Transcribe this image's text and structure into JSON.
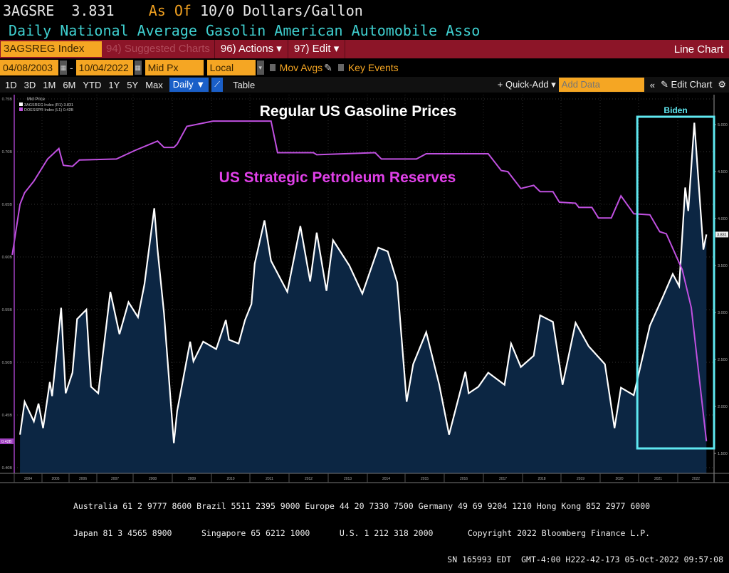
{
  "header": {
    "ticker": "3AGSRE",
    "price": "3.831",
    "as_of_label": "As Of",
    "as_of_value": "10/0",
    "units": "Dollars/Gallon",
    "description": "Daily National Average Gasolin American Automobile Asso"
  },
  "toolbar": {
    "security": "3AGSREG Index",
    "suggested": "94) Suggested Charts",
    "actions": "96) Actions ▾",
    "edit": "97) Edit ▾",
    "chart_type": "Line Chart"
  },
  "controls": {
    "start_date": "04/08/2003",
    "end_date": "10/04/2022",
    "separator": "-",
    "price_field": "Mid Px",
    "currency": "Local CCY",
    "mov_avgs": "Mov Avgs",
    "key_events": "Key Events"
  },
  "periods": [
    "1D",
    "3D",
    "1M",
    "6M",
    "YTD",
    "1Y",
    "5Y",
    "Max"
  ],
  "period_bar": {
    "frequency": "Daily ▼",
    "table": "Table",
    "quick_add": "+ Quick-Add ▾",
    "add_data_placeholder": "Add Data",
    "collapse": "«",
    "edit_chart": "✎ Edit Chart",
    "settings": "⚙"
  },
  "colors": {
    "gasoline": "#ffffff",
    "spr": "#c050e0",
    "fill": "#0c2643",
    "biden_box": "#5fe8f0",
    "toolbar": "#8c1528",
    "input": "#f5a623"
  },
  "chart_data": {
    "type": "line",
    "legend_header": "Mid Price",
    "legend_position": "top-left",
    "grid": true,
    "annotations": {
      "gas_title": "Regular US Gasoline Prices",
      "spr_title": "US Strategic Petroleum Reserves",
      "box_label": "Biden",
      "box_range": [
        "2021-01",
        "2022-10"
      ]
    },
    "x_ticks": [
      "2004",
      "2005",
      "2006",
      "2007",
      "2008",
      "2009",
      "2010",
      "2011",
      "2012",
      "2013",
      "2014",
      "2015",
      "2016",
      "2017",
      "2018",
      "2019",
      "2020",
      "2021",
      "2022"
    ],
    "left_axis": {
      "ticks": [
        "0.75B",
        "0.70B",
        "0.65B",
        "0.60B",
        "0.55B",
        "0.50B",
        "0.45B",
        "0.40B"
      ],
      "tick_values": [
        0.75,
        0.7,
        0.65,
        0.6,
        0.55,
        0.5,
        0.45,
        0.4
      ],
      "ylim": [
        0.4,
        0.75
      ],
      "last_label": "0.42B"
    },
    "right_axis": {
      "ticks": [
        "5.000",
        "4.500",
        "4.000",
        "3.500",
        "3.000",
        "2.500",
        "2.000",
        "1.500"
      ],
      "tick_values": [
        5.0,
        4.5,
        4.0,
        3.5,
        3.0,
        2.5,
        2.0,
        1.5
      ],
      "ylim": [
        1.45,
        5.2
      ],
      "last_label": "3.831"
    },
    "series": [
      {
        "name": "3AGSREG Index (R1) 3.831",
        "axis": "right",
        "area": true,
        "points": [
          [
            "2004-03",
            1.7
          ],
          [
            "2004-05",
            2.05
          ],
          [
            "2004-09",
            1.84
          ],
          [
            "2004-11",
            2.03
          ],
          [
            "2005-01",
            1.77
          ],
          [
            "2005-04",
            2.26
          ],
          [
            "2005-05",
            2.11
          ],
          [
            "2005-09",
            3.05
          ],
          [
            "2005-11",
            2.14
          ],
          [
            "2006-02",
            2.36
          ],
          [
            "2006-04",
            2.93
          ],
          [
            "2006-08",
            3.03
          ],
          [
            "2006-10",
            2.21
          ],
          [
            "2007-01",
            2.14
          ],
          [
            "2007-05",
            3.22
          ],
          [
            "2007-08",
            2.77
          ],
          [
            "2007-11",
            3.11
          ],
          [
            "2008-02",
            2.95
          ],
          [
            "2008-04",
            3.3
          ],
          [
            "2008-07",
            4.11
          ],
          [
            "2008-08",
            3.67
          ],
          [
            "2008-10",
            2.99
          ],
          [
            "2009-01",
            1.61
          ],
          [
            "2009-02",
            1.95
          ],
          [
            "2009-06",
            2.69
          ],
          [
            "2009-07",
            2.48
          ],
          [
            "2009-10",
            2.69
          ],
          [
            "2010-02",
            2.61
          ],
          [
            "2010-05",
            2.92
          ],
          [
            "2010-06",
            2.71
          ],
          [
            "2010-09",
            2.67
          ],
          [
            "2010-11",
            2.92
          ],
          [
            "2011-01",
            3.09
          ],
          [
            "2011-02",
            3.52
          ],
          [
            "2011-05",
            3.98
          ],
          [
            "2011-07",
            3.55
          ],
          [
            "2011-12",
            3.22
          ],
          [
            "2012-04",
            3.92
          ],
          [
            "2012-07",
            3.33
          ],
          [
            "2012-09",
            3.85
          ],
          [
            "2012-12",
            3.23
          ],
          [
            "2013-02",
            3.77
          ],
          [
            "2013-07",
            3.5
          ],
          [
            "2013-11",
            3.2
          ],
          [
            "2014-04",
            3.69
          ],
          [
            "2014-07",
            3.65
          ],
          [
            "2014-10",
            3.32
          ],
          [
            "2015-01",
            2.05
          ],
          [
            "2015-03",
            2.45
          ],
          [
            "2015-07",
            2.79
          ],
          [
            "2015-11",
            2.23
          ],
          [
            "2016-02",
            1.7
          ],
          [
            "2016-07",
            2.37
          ],
          [
            "2016-08",
            2.14
          ],
          [
            "2016-11",
            2.21
          ],
          [
            "2017-02",
            2.36
          ],
          [
            "2017-07",
            2.23
          ],
          [
            "2017-09",
            2.67
          ],
          [
            "2017-12",
            2.42
          ],
          [
            "2018-04",
            2.54
          ],
          [
            "2018-06",
            2.97
          ],
          [
            "2018-10",
            2.9
          ],
          [
            "2019-01",
            2.23
          ],
          [
            "2019-05",
            2.89
          ],
          [
            "2019-09",
            2.64
          ],
          [
            "2020-02",
            2.45
          ],
          [
            "2020-05",
            1.77
          ],
          [
            "2020-07",
            2.2
          ],
          [
            "2020-11",
            2.12
          ],
          [
            "2021-04",
            2.86
          ],
          [
            "2021-08",
            3.17
          ],
          [
            "2021-11",
            3.41
          ],
          [
            "2022-01",
            3.28
          ],
          [
            "2022-03",
            4.33
          ],
          [
            "2022-04",
            4.08
          ],
          [
            "2022-06",
            5.02
          ],
          [
            "2022-09",
            3.67
          ],
          [
            "2022-10",
            3.83
          ]
        ]
      },
      {
        "name": "DOESSPR Index (L1) 0.42B",
        "axis": "left",
        "area": false,
        "points": [
          [
            "2003-04",
            0.602
          ],
          [
            "2004-03",
            0.65
          ],
          [
            "2004-05",
            0.661
          ],
          [
            "2004-09",
            0.672
          ],
          [
            "2005-03",
            0.693
          ],
          [
            "2005-08",
            0.703
          ],
          [
            "2005-10",
            0.687
          ],
          [
            "2006-02",
            0.686
          ],
          [
            "2006-05",
            0.692
          ],
          [
            "2007-07",
            0.693
          ],
          [
            "2008-01",
            0.701
          ],
          [
            "2008-08",
            0.71
          ],
          [
            "2008-10",
            0.704
          ],
          [
            "2009-01",
            0.704
          ],
          [
            "2009-02",
            0.707
          ],
          [
            "2009-05",
            0.724
          ],
          [
            "2010-01",
            0.729
          ],
          [
            "2011-07",
            0.729
          ],
          [
            "2011-09",
            0.699
          ],
          [
            "2012-08",
            0.699
          ],
          [
            "2012-09",
            0.697
          ],
          [
            "2014-03",
            0.699
          ],
          [
            "2014-05",
            0.693
          ],
          [
            "2015-04",
            0.693
          ],
          [
            "2015-07",
            0.698
          ],
          [
            "2017-02",
            0.698
          ],
          [
            "2017-06",
            0.682
          ],
          [
            "2017-08",
            0.681
          ],
          [
            "2017-12",
            0.665
          ],
          [
            "2018-04",
            0.668
          ],
          [
            "2018-06",
            0.662
          ],
          [
            "2018-10",
            0.662
          ],
          [
            "2018-12",
            0.652
          ],
          [
            "2019-05",
            0.651
          ],
          [
            "2019-06",
            0.647
          ],
          [
            "2019-10",
            0.647
          ],
          [
            "2019-12",
            0.637
          ],
          [
            "2020-04",
            0.637
          ],
          [
            "2020-07",
            0.658
          ],
          [
            "2020-11",
            0.641
          ],
          [
            "2021-04",
            0.64
          ],
          [
            "2021-07",
            0.624
          ],
          [
            "2021-09",
            0.622
          ],
          [
            "2022-02",
            0.588
          ],
          [
            "2022-05",
            0.552
          ],
          [
            "2022-10",
            0.425
          ]
        ]
      }
    ]
  },
  "footer": {
    "line1": "Australia 61 2 9777 8600 Brazil 5511 2395 9000 Europe 44 20 7330 7500 Germany 49 69 9204 1210 Hong Kong 852 2977 6000",
    "line2": "Japan 81 3 4565 8900      Singapore 65 6212 1000      U.S. 1 212 318 2000       Copyright 2022 Bloomberg Finance L.P.",
    "line3": "SN 165993 EDT  GMT-4:00 H222-42-173 05-Oct-2022 09:57:08"
  }
}
